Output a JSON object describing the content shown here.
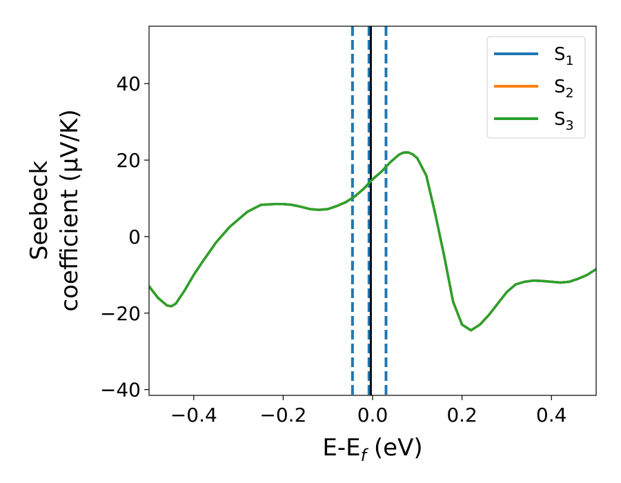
{
  "chart_data": {
    "type": "line",
    "xlabel": "E-E",
    "xlabel_sub": "f",
    "xlabel_unit": " (eV)",
    "ylabel_line1": "Seebeck",
    "ylabel_line2": "coefficient  (μV/K)",
    "xlim": [
      -0.5,
      0.5
    ],
    "ylim": [
      -41.5,
      55
    ],
    "xticks": [
      -0.4,
      -0.2,
      0.0,
      0.2,
      0.4
    ],
    "xtick_labels": [
      "−0.4",
      "−0.2",
      "0.0",
      "0.2",
      "0.4"
    ],
    "yticks": [
      -40,
      -20,
      0,
      20,
      40
    ],
    "ytick_labels": [
      "−40",
      "−20",
      "0",
      "20",
      "40"
    ],
    "grid": false,
    "legend_position": "top-right",
    "vertical_lines": [
      {
        "x": -0.045,
        "style": "dashed",
        "color": "#1f77b4"
      },
      {
        "x": -0.008,
        "style": "dashed",
        "color": "#1f77b4"
      },
      {
        "x": 0.03,
        "style": "dashed",
        "color": "#1f77b4"
      },
      {
        "x": -0.004,
        "style": "solid",
        "color": "#000000"
      }
    ],
    "x": [
      -0.5,
      -0.48,
      -0.46,
      -0.45,
      -0.44,
      -0.42,
      -0.4,
      -0.38,
      -0.35,
      -0.32,
      -0.3,
      -0.28,
      -0.25,
      -0.22,
      -0.2,
      -0.18,
      -0.16,
      -0.14,
      -0.12,
      -0.1,
      -0.08,
      -0.06,
      -0.04,
      -0.02,
      0.0,
      0.02,
      0.04,
      0.06,
      0.07,
      0.08,
      0.09,
      0.1,
      0.12,
      0.14,
      0.16,
      0.18,
      0.2,
      0.22,
      0.24,
      0.26,
      0.28,
      0.3,
      0.32,
      0.34,
      0.36,
      0.38,
      0.4,
      0.42,
      0.44,
      0.46,
      0.48,
      0.5
    ],
    "series": [
      {
        "name": "S",
        "sub": "1",
        "color": "#1f77b4",
        "values": [
          -13,
          -16,
          -18,
          -18.2,
          -17.5,
          -14,
          -10,
          -6.5,
          -1.5,
          2.5,
          4.5,
          6.5,
          8.3,
          8.5,
          8.5,
          8.3,
          7.8,
          7.2,
          7,
          7.2,
          8,
          9,
          10.5,
          12.5,
          15,
          17,
          19.5,
          21.5,
          22,
          22,
          21.5,
          20.5,
          16,
          6,
          -5,
          -17,
          -23,
          -24.5,
          -23,
          -20.5,
          -17.5,
          -14.5,
          -12.5,
          -11.8,
          -11.5,
          -11.6,
          -11.8,
          -12,
          -11.8,
          -11,
          -10,
          -8.5
        ]
      },
      {
        "name": "S",
        "sub": "2",
        "color": "#ff7f0e",
        "values": [
          -13,
          -16,
          -18,
          -18.2,
          -17.5,
          -14,
          -10,
          -6.5,
          -1.5,
          2.5,
          4.5,
          6.5,
          8.3,
          8.5,
          8.5,
          8.3,
          7.8,
          7.2,
          7,
          7.2,
          8,
          9,
          10.5,
          12.5,
          15,
          17,
          19.5,
          21.5,
          22,
          22,
          21.5,
          20.5,
          16,
          6,
          -5,
          -17,
          -23,
          -24.5,
          -23,
          -20.5,
          -17.5,
          -14.5,
          -12.5,
          -11.8,
          -11.5,
          -11.6,
          -11.8,
          -12,
          -11.8,
          -11,
          -10,
          -8.5
        ]
      },
      {
        "name": "S",
        "sub": "3",
        "color": "#2ca02c",
        "values": [
          -13,
          -16,
          -18,
          -18.2,
          -17.5,
          -14,
          -10,
          -6.5,
          -1.5,
          2.5,
          4.5,
          6.5,
          8.3,
          8.5,
          8.5,
          8.3,
          7.8,
          7.2,
          7,
          7.2,
          8,
          9,
          10.5,
          12.5,
          15,
          17,
          19.5,
          21.5,
          22,
          22,
          21.5,
          20.5,
          16,
          6,
          -5,
          -17,
          -23,
          -24.5,
          -23,
          -20.5,
          -17.5,
          -14.5,
          -12.5,
          -11.8,
          -11.5,
          -11.6,
          -11.8,
          -12,
          -11.8,
          -11,
          -10,
          -8.5
        ]
      }
    ]
  }
}
